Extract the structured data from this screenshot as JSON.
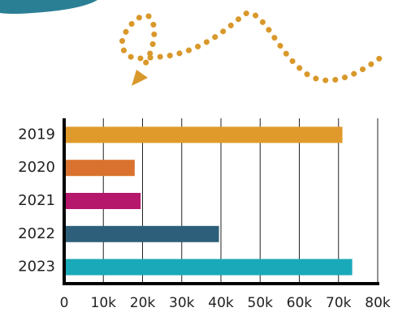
{
  "chart_data": {
    "type": "bar",
    "orientation": "horizontal",
    "categories": [
      "2019",
      "2020",
      "2021",
      "2022",
      "2023"
    ],
    "values": [
      71000,
      18000,
      19500,
      39500,
      73500
    ],
    "colors": [
      "#e09a2b",
      "#d9722e",
      "#b5176b",
      "#2e5f7a",
      "#1aa9b8"
    ],
    "xlim": [
      0,
      80000
    ],
    "xticks": [
      0,
      {
        "value": 10000,
        "label": "10k"
      },
      {
        "value": 20000,
        "label": "20k"
      },
      {
        "value": 30000,
        "label": "30k"
      },
      {
        "value": 40000,
        "label": "40k"
      },
      {
        "value": 50000,
        "label": "50k"
      },
      {
        "value": 60000,
        "label": "60k"
      },
      {
        "value": 70000,
        "label": "70k"
      },
      {
        "value": 80000,
        "label": "80k"
      }
    ],
    "grid": true
  }
}
